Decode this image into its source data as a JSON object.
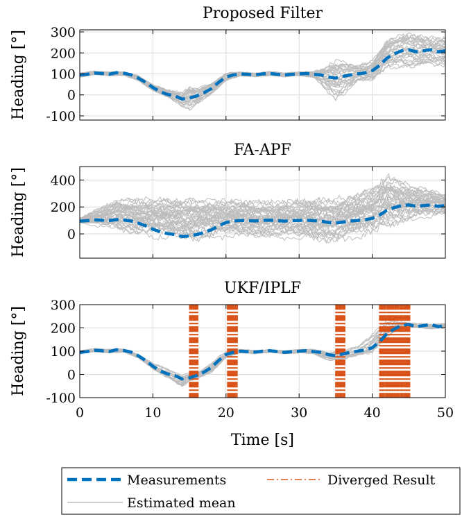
{
  "colors": {
    "measurement": "#0072BD",
    "estimate": "#BDBDBD",
    "diverged": "#D95319",
    "grid": "#DCDCDC",
    "axis": "#000000"
  },
  "chart_data": [
    {
      "type": "line",
      "title": "Proposed Filter",
      "ylabel": "Heading [°]",
      "xlabel": "",
      "xlim": [
        0,
        50
      ],
      "ylim": [
        -120,
        310
      ],
      "yticks": [
        300,
        200,
        100,
        0,
        -100
      ],
      "ytick_labels": [
        "300",
        "200",
        "100",
        "0",
        "-100"
      ],
      "xticks": [
        0,
        10,
        20,
        30,
        40,
        50
      ],
      "xtick_labels": [],
      "grid": true,
      "series": [
        {
          "name": "Measurements",
          "x": [
            0,
            1,
            2,
            3,
            4,
            5,
            6,
            7,
            8,
            9,
            10,
            11,
            12,
            13,
            14,
            15,
            16,
            17,
            18,
            19,
            20,
            21,
            22,
            23,
            24,
            25,
            26,
            27,
            28,
            29,
            30,
            31,
            32,
            33,
            34,
            35,
            36,
            37,
            38,
            39,
            40,
            41,
            42,
            43,
            44,
            45,
            46,
            47,
            48,
            49,
            50
          ],
          "values": [
            95,
            98,
            104,
            102,
            98,
            106,
            103,
            96,
            80,
            60,
            35,
            15,
            2,
            -5,
            -20,
            -15,
            -5,
            10,
            30,
            60,
            85,
            95,
            100,
            98,
            96,
            100,
            102,
            98,
            95,
            98,
            100,
            102,
            98,
            95,
            85,
            80,
            88,
            95,
            100,
            105,
            115,
            140,
            175,
            195,
            210,
            215,
            205,
            210,
            215,
            205,
            210
          ]
        },
        {
          "name": "Estimated mean",
          "x": [
            0,
            2,
            4,
            6,
            8,
            10,
            12,
            14,
            15,
            16,
            18,
            20,
            22,
            24,
            26,
            28,
            30,
            32,
            34,
            35,
            36,
            38,
            40,
            42,
            44,
            46,
            48,
            50
          ],
          "values": [
            95,
            104,
            100,
            103,
            80,
            35,
            5,
            -20,
            -10,
            -5,
            30,
            85,
            100,
            96,
            102,
            95,
            100,
            98,
            80,
            70,
            80,
            100,
            115,
            200,
            215,
            210,
            205,
            210
          ],
          "spread": [
            10,
            10,
            10,
            10,
            12,
            15,
            20,
            35,
            60,
            40,
            25,
            20,
            10,
            10,
            10,
            10,
            10,
            15,
            70,
            90,
            80,
            40,
            50,
            70,
            80,
            80,
            70,
            70
          ],
          "count": 30
        }
      ]
    },
    {
      "type": "line",
      "title": "FA-APF",
      "ylabel": "Heading [°]",
      "xlabel": "",
      "xlim": [
        0,
        50
      ],
      "ylim": [
        -180,
        500
      ],
      "yticks": [
        400,
        200,
        0
      ],
      "ytick_labels": [
        "400",
        "200",
        "0"
      ],
      "xticks": [
        0,
        10,
        20,
        30,
        40,
        50
      ],
      "xtick_labels": [],
      "grid": true,
      "series": [
        {
          "name": "Measurements",
          "x": [
            0,
            1,
            2,
            3,
            4,
            5,
            6,
            7,
            8,
            9,
            10,
            11,
            12,
            13,
            14,
            15,
            16,
            17,
            18,
            19,
            20,
            21,
            22,
            23,
            24,
            25,
            26,
            27,
            28,
            29,
            30,
            31,
            32,
            33,
            34,
            35,
            36,
            37,
            38,
            39,
            40,
            41,
            42,
            43,
            44,
            45,
            46,
            47,
            48,
            49,
            50
          ],
          "values": [
            95,
            98,
            104,
            102,
            98,
            106,
            103,
            96,
            80,
            60,
            35,
            15,
            2,
            -5,
            -20,
            -15,
            -5,
            10,
            30,
            60,
            85,
            95,
            100,
            98,
            96,
            100,
            102,
            98,
            95,
            98,
            100,
            102,
            98,
            95,
            85,
            80,
            88,
            95,
            100,
            105,
            115,
            140,
            175,
            195,
            210,
            215,
            205,
            210,
            215,
            205,
            210
          ]
        },
        {
          "name": "Estimated mean",
          "x": [
            0,
            5,
            10,
            15,
            20,
            25,
            30,
            35,
            40,
            42,
            45,
            50
          ],
          "values": [
            100,
            130,
            110,
            90,
            100,
            100,
            90,
            90,
            150,
            230,
            220,
            210
          ],
          "spread": [
            20,
            120,
            150,
            160,
            150,
            140,
            160,
            170,
            190,
            200,
            150,
            80
          ],
          "count": 40
        }
      ]
    },
    {
      "type": "line",
      "title": "UKF/IPLF",
      "ylabel": "Heading [°]",
      "xlabel": "Time [s]",
      "xlim": [
        0,
        50
      ],
      "ylim": [
        -100,
        300
      ],
      "yticks": [
        300,
        200,
        100,
        0,
        -100
      ],
      "ytick_labels": [
        "300",
        "200",
        "100",
        "0",
        "-100"
      ],
      "xticks": [
        0,
        10,
        20,
        30,
        40,
        50
      ],
      "xtick_labels": [
        "0",
        "10",
        "20",
        "30",
        "40",
        "50"
      ],
      "grid": true,
      "series": [
        {
          "name": "Measurements",
          "x": [
            0,
            1,
            2,
            3,
            4,
            5,
            6,
            7,
            8,
            9,
            10,
            11,
            12,
            13,
            14,
            15,
            16,
            17,
            18,
            19,
            20,
            21,
            22,
            23,
            24,
            25,
            26,
            27,
            28,
            29,
            30,
            31,
            32,
            33,
            34,
            35,
            36,
            37,
            38,
            39,
            40,
            41,
            42,
            43,
            44,
            45,
            46,
            47,
            48,
            49,
            50
          ],
          "values": [
            95,
            98,
            104,
            102,
            98,
            106,
            103,
            96,
            80,
            60,
            35,
            15,
            2,
            -5,
            -20,
            -15,
            -5,
            10,
            30,
            60,
            85,
            95,
            100,
            98,
            96,
            100,
            102,
            98,
            95,
            98,
            100,
            102,
            98,
            95,
            85,
            80,
            88,
            95,
            100,
            105,
            115,
            140,
            175,
            195,
            210,
            215,
            205,
            210,
            215,
            205,
            210
          ]
        },
        {
          "name": "Estimated mean",
          "x": [
            0,
            2,
            4,
            6,
            8,
            10,
            12,
            14,
            15,
            16,
            18,
            20,
            22,
            24,
            26,
            28,
            30,
            32,
            34,
            36,
            38,
            40,
            42,
            44,
            46,
            48,
            50
          ],
          "values": [
            95,
            104,
            100,
            103,
            80,
            35,
            5,
            -30,
            -10,
            -5,
            30,
            85,
            100,
            96,
            102,
            95,
            100,
            98,
            80,
            85,
            100,
            130,
            200,
            215,
            210,
            205,
            210
          ],
          "spread": [
            8,
            8,
            8,
            8,
            10,
            15,
            20,
            25,
            20,
            15,
            25,
            15,
            8,
            8,
            8,
            8,
            8,
            10,
            20,
            25,
            20,
            40,
            40,
            15,
            10,
            10,
            10
          ],
          "count": 20
        },
        {
          "name": "Diverged Result",
          "intervals": [
            [
              15,
              16.2
            ],
            [
              20.2,
              21.6
            ],
            [
              35,
              36.3
            ],
            [
              41,
              45.2
            ]
          ]
        }
      ]
    }
  ],
  "legend": {
    "items": [
      {
        "label": "Measurements",
        "style": "dashed",
        "color": "#0072BD"
      },
      {
        "label": "Diverged Result",
        "style": "dashdot",
        "color": "#D95319"
      },
      {
        "label": "Estimated mean",
        "style": "solid",
        "color": "#BDBDBD"
      }
    ]
  }
}
